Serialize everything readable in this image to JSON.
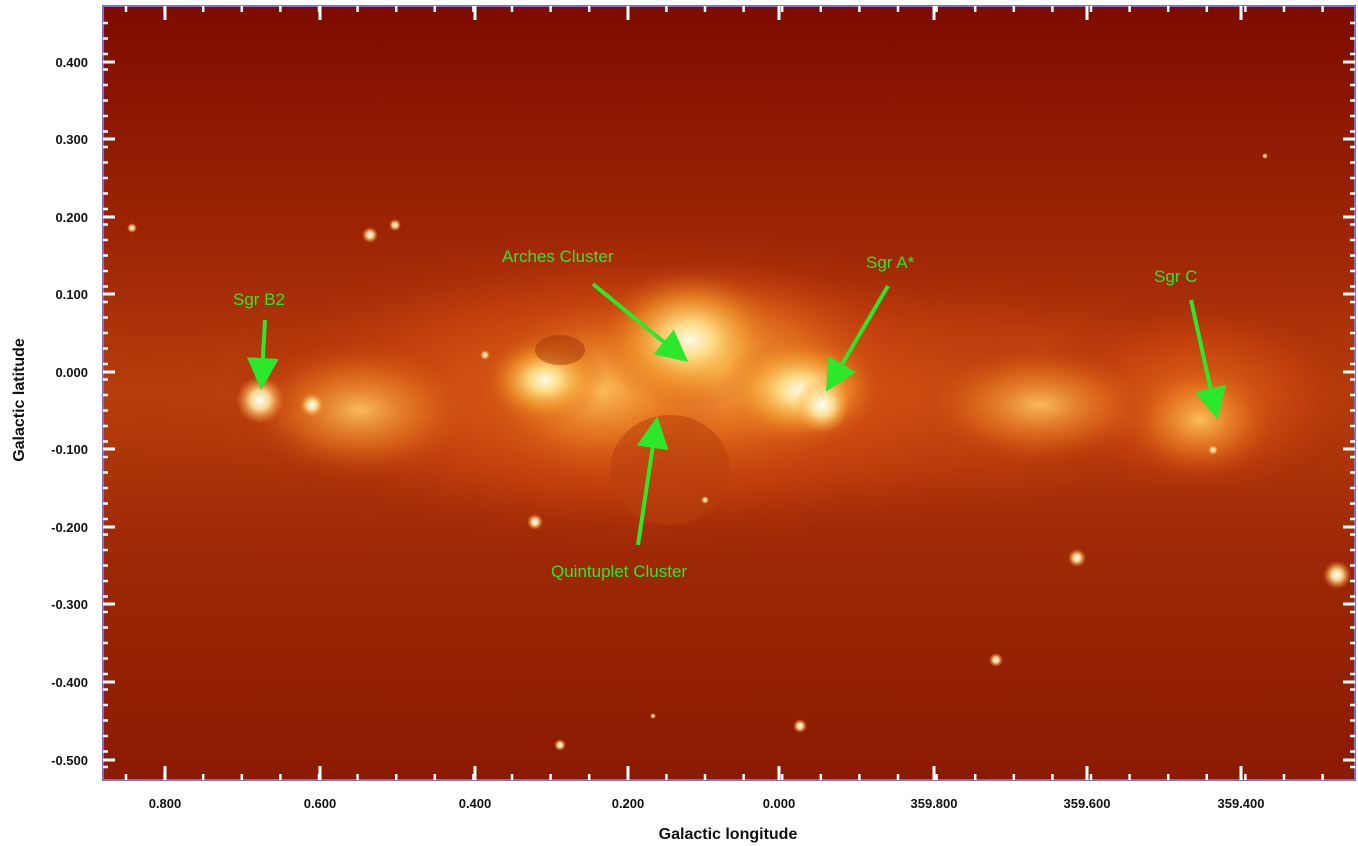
{
  "axes": {
    "xlabel": "Galactic longitude",
    "ylabel": "Galactic latitude",
    "x_ticks": [
      "0.800",
      "0.600",
      "0.400",
      "0.200",
      "0.000",
      "359.800",
      "359.600",
      "359.400"
    ],
    "y_ticks": [
      "0.400",
      "0.300",
      "0.200",
      "0.100",
      "0.000",
      "-0.100",
      "-0.200",
      "-0.300",
      "-0.400",
      "-0.500"
    ]
  },
  "annotations": {
    "sgr_b2": "Sgr B2",
    "arches": "Arches Cluster",
    "sgr_a": "Sgr A*",
    "sgr_c": "Sgr C",
    "quintuplet": "Quintuplet Cluster"
  },
  "colors": {
    "annotation": "#2ce82c",
    "frame": "#7b6fd8",
    "background_dark": "#7a0a00",
    "glow_core": "#fff4c0"
  }
}
